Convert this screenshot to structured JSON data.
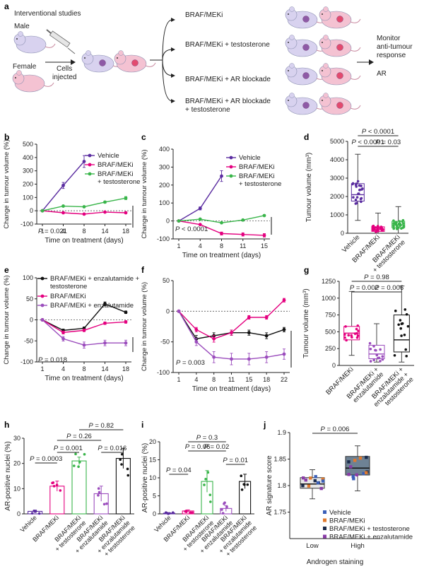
{
  "chart_data": [
    {
      "panel": "a",
      "type": "diagram",
      "title": "Interventional studies",
      "inputs": [
        "Male",
        "Female"
      ],
      "injection_label": "Cells injected",
      "arms": [
        "BRAF/MEKi",
        "BRAF/MEKi + testosterone",
        "BRAF/MEKi + AR blockade",
        "BRAF/MEKi + AR blockade + testosterone"
      ],
      "outputs": [
        "Monitor anti-tumour response",
        "AR"
      ]
    },
    {
      "panel": "b",
      "type": "line",
      "xlabel": "Time on treatment (days)",
      "ylabel": "Change in tumour volume (%)",
      "x": [
        1,
        4,
        8,
        14,
        18
      ],
      "ylim": [
        -100,
        500
      ],
      "yticks": [
        -100,
        0,
        100,
        200,
        300,
        400,
        500
      ],
      "series": [
        {
          "name": "Vehicle",
          "x": [
            1,
            4,
            8
          ],
          "values": [
            0,
            190,
            370
          ],
          "color": "#5a2ca0"
        },
        {
          "name": "BRAF/MEKi",
          "x": [
            1,
            4,
            8,
            14,
            18
          ],
          "values": [
            0,
            -15,
            -25,
            -10,
            -15
          ],
          "color": "#e4007f"
        },
        {
          "name": "BRAF/MEKi + testosterone",
          "x": [
            1,
            4,
            8,
            14,
            18
          ],
          "values": [
            0,
            35,
            30,
            65,
            95
          ],
          "color": "#39b54a"
        }
      ],
      "annotation": "P = 0.021"
    },
    {
      "panel": "c",
      "type": "line",
      "xlabel": "Time on treatment (days)",
      "ylabel": "Change in tumour volume (%)",
      "x": [
        1,
        4,
        8,
        11,
        15
      ],
      "ylim": [
        -100,
        400
      ],
      "yticks": [
        -100,
        0,
        100,
        200,
        300,
        400
      ],
      "series": [
        {
          "name": "Vehicle",
          "x": [
            1,
            4,
            8
          ],
          "values": [
            0,
            70,
            250
          ],
          "color": "#5a2ca0"
        },
        {
          "name": "BRAF/MEKi",
          "x": [
            1,
            4,
            8,
            11,
            15
          ],
          "values": [
            0,
            -20,
            -70,
            -75,
            -80
          ],
          "color": "#e4007f"
        },
        {
          "name": "BRAF/MEKi + testosterone",
          "x": [
            1,
            4,
            8,
            11,
            15
          ],
          "values": [
            0,
            10,
            -10,
            5,
            30
          ],
          "color": "#39b54a"
        }
      ],
      "annotation": "P < 0.0001"
    },
    {
      "panel": "d",
      "type": "box",
      "ylabel": "Tumour volume (mm³)",
      "ylabel_text": "Tumour volume (mm",
      "ylabel_sup": "3",
      "ylim": [
        0,
        5000
      ],
      "yticks": [
        0,
        1000,
        2000,
        3000,
        4000,
        5000
      ],
      "categories": [
        "Vehicle",
        "BRAF/MEKi",
        "BRAF/MEKi + testosterone"
      ],
      "category_lines": [
        [
          "Vehicle"
        ],
        [
          "BRAF/MEKi"
        ],
        [
          "BRAF/MEKi",
          "+ testosterone"
        ]
      ],
      "boxes": [
        {
          "min": 700,
          "q1": 1750,
          "median": 2100,
          "q3": 2700,
          "max": 4300,
          "color": "#5a2ca0"
        },
        {
          "min": 0,
          "q1": 100,
          "median": 200,
          "q3": 350,
          "max": 1100,
          "color": "#e4007f"
        },
        {
          "min": 0,
          "q1": 300,
          "median": 450,
          "q3": 650,
          "max": 1450,
          "color": "#39b54a"
        }
      ],
      "comparisons": [
        {
          "label": "P < 0.0001",
          "from": 0,
          "to": 2
        },
        {
          "label": "P < 0.0001",
          "from": 0,
          "to": 1
        },
        {
          "label": "P = 0.03",
          "from": 1,
          "to": 2
        }
      ]
    },
    {
      "panel": "e",
      "type": "line",
      "xlabel": "Time on treatment (days)",
      "ylabel": "Change in tumour volume (%)",
      "x": [
        1,
        4,
        8,
        14,
        18
      ],
      "ylim": [
        -100,
        100
      ],
      "yticks": [
        -100,
        -50,
        0,
        50,
        100
      ],
      "series": [
        {
          "name": "BRAF/MEKi + enzalutamide + testosterone",
          "legend_lines": [
            "BRAF/MEKi + enzalutamide +",
            "testosterone"
          ],
          "x": [
            1,
            4,
            8,
            14,
            18
          ],
          "values": [
            0,
            -25,
            -20,
            38,
            18
          ],
          "color": "#111111"
        },
        {
          "name": "BRAF/MEKi",
          "legend_lines": [
            "BRAF/MEKi"
          ],
          "x": [
            1,
            4,
            8,
            14,
            18
          ],
          "values": [
            0,
            -30,
            -25,
            -8,
            -5
          ],
          "color": "#e4007f"
        },
        {
          "name": "BRAF/MEKi + enzalutamide",
          "legend_lines": [
            "BRAF/MEKi + enzalutamide"
          ],
          "x": [
            1,
            4,
            8,
            14,
            18
          ],
          "values": [
            0,
            -45,
            -60,
            -55,
            -55
          ],
          "color": "#9b4dbd"
        }
      ],
      "annotation": "P = 0.018"
    },
    {
      "panel": "f",
      "type": "line",
      "xlabel": "Time on treatment (days)",
      "ylabel": "Change in tumour volume (%)",
      "x": [
        1,
        4,
        8,
        11,
        15,
        18,
        22
      ],
      "ylim": [
        -100,
        50
      ],
      "yticks": [
        -100,
        -50,
        0,
        50
      ],
      "series": [
        {
          "name": "BRAF/MEKi + enzalutamide + testosterone",
          "x": [
            1,
            4,
            8,
            11,
            15,
            18,
            22
          ],
          "values": [
            0,
            -45,
            -40,
            -35,
            -35,
            -40,
            -30
          ],
          "color": "#111111"
        },
        {
          "name": "BRAF/MEKi",
          "x": [
            1,
            4,
            8,
            11,
            15,
            18,
            22
          ],
          "values": [
            0,
            -30,
            -45,
            -35,
            -10,
            -10,
            18
          ],
          "color": "#e4007f"
        },
        {
          "name": "BRAF/MEKi + enzalutamide",
          "x": [
            1,
            4,
            8,
            11,
            15,
            18,
            22
          ],
          "values": [
            0,
            -50,
            -75,
            -78,
            -78,
            -75,
            -70
          ],
          "color": "#9b4dbd"
        }
      ],
      "annotation": "P = 0.003"
    },
    {
      "panel": "g",
      "type": "box",
      "ylabel": "Tumour volume (mm³)",
      "ylabel_text": "Tumour volume (mm",
      "ylabel_sup": "3",
      "ylim": [
        0,
        1250
      ],
      "yticks": [
        0,
        250,
        500,
        750,
        1000,
        1250
      ],
      "categories": [
        "BRAF/MEKi",
        "BRAF/MEKi + enzalutamide",
        "BRAF/MEKi + enzalutamide + testosterone"
      ],
      "category_lines": [
        [
          "BRAF/MEKi"
        ],
        [
          "BRAF/MEKi +",
          "enzalutamide"
        ],
        [
          "BRAF/MEKi +",
          "enzalutamide +",
          "testosterone"
        ]
      ],
      "boxes": [
        {
          "min": 150,
          "q1": 380,
          "median": 480,
          "q3": 580,
          "max": 1100,
          "color": "#e4007f"
        },
        {
          "min": 50,
          "q1": 100,
          "median": 170,
          "q3": 300,
          "max": 620,
          "color": "#9b4dbd"
        },
        {
          "min": 50,
          "q1": 200,
          "median": 380,
          "q3": 750,
          "max": 1180,
          "color": "#111111"
        }
      ],
      "comparisons": [
        {
          "label": "P = 0.98",
          "from": 0,
          "to": 2
        },
        {
          "label": "P = 0.002",
          "from": 0,
          "to": 1
        },
        {
          "label": "P = 0.006",
          "from": 1,
          "to": 2
        }
      ]
    },
    {
      "panel": "h",
      "type": "bar",
      "ylabel": "AR-positive nuclei (%)",
      "ylim": [
        0,
        30
      ],
      "yticks": [
        0,
        10,
        20,
        30
      ],
      "categories": [
        "Vehicle",
        "BRAF/MEKi",
        "BRAF/MEKi + testosterone",
        "BRAF/MEKi + enzalutamide",
        "BRAF/MEKi + enzalutamide + testosterone"
      ],
      "category_lines": [
        [
          "Vehicle"
        ],
        [
          "BRAF/MEKi"
        ],
        [
          "BRAF/MEKi",
          "+ testosterone"
        ],
        [
          "BRAF/MEKi",
          "+ enzalutamide"
        ],
        [
          "BRAF/MEKi",
          "+ enzalutamide",
          "+ testosterone"
        ]
      ],
      "values": [
        1,
        11,
        21,
        8,
        22
      ],
      "errors": [
        0.5,
        2,
        1.5,
        3,
        4
      ],
      "colors": [
        "#5a2ca0",
        "#e4007f",
        "#39b54a",
        "#9b4dbd",
        "#111111"
      ],
      "comparisons": [
        {
          "label": "P = 0.82",
          "from": 2,
          "to": 4
        },
        {
          "label": "P = 0.26",
          "from": 1,
          "to": 3
        },
        {
          "label": "P = 0.001",
          "from": 1,
          "to": 2
        },
        {
          "label": "P = 0.016",
          "from": 3,
          "to": 4
        },
        {
          "label": "P = 0.0003",
          "from": 0,
          "to": 1
        }
      ]
    },
    {
      "panel": "i",
      "type": "bar",
      "ylabel": "AR-positive nuclei (%)",
      "ylim": [
        0,
        20
      ],
      "yticks": [
        0,
        5,
        10,
        15,
        20
      ],
      "categories": [
        "Vehicle",
        "BRAF/MEKi",
        "BRAF/MEKi + testosterone",
        "BRAF/MEKi + enzalutamide",
        "BRAF/MEKi + enzalutamide + testosterone"
      ],
      "category_lines": [
        [
          "Vehicle"
        ],
        [
          "BRAF/MEKi"
        ],
        [
          "BRAF/MEKi",
          "+ testosterone"
        ],
        [
          "BRAF/MEKi",
          "+ enzalutamide"
        ],
        [
          "BRAF/MEKi",
          "+ enzalutamide",
          "+ testosterone"
        ]
      ],
      "values": [
        0.2,
        0.8,
        9,
        1.5,
        9
      ],
      "errors": [
        0.1,
        0.3,
        3,
        0.8,
        2
      ],
      "colors": [
        "#5a2ca0",
        "#e4007f",
        "#39b54a",
        "#9b4dbd",
        "#111111"
      ],
      "comparisons": [
        {
          "label": "P = 0.3",
          "from": 1,
          "to": 3
        },
        {
          "label": "P = 0.06",
          "from": 1,
          "to": 2
        },
        {
          "label": "P = 0.02",
          "from": 2,
          "to": 3
        },
        {
          "label": "P = 0.01",
          "from": 3,
          "to": 4
        },
        {
          "label": "P = 0.04",
          "from": 0,
          "to": 1
        }
      ]
    },
    {
      "panel": "j",
      "type": "box",
      "xlabel": "Androgen staining",
      "ylabel": "AR signature score",
      "ylim": [
        1.7,
        1.9
      ],
      "yticks": [
        1.75,
        1.8,
        1.85,
        1.9
      ],
      "categories": [
        "Low",
        "High"
      ],
      "boxes": [
        {
          "min": 1.775,
          "q1": 1.795,
          "median": 1.803,
          "q3": 1.815,
          "max": 1.83,
          "color": "#e8e8e8"
        },
        {
          "min": 1.79,
          "q1": 1.82,
          "median": 1.833,
          "q3": 1.855,
          "max": 1.875,
          "color": "#6e8294"
        }
      ],
      "comparisons": [
        {
          "label": "P = 0.006",
          "from": 0,
          "to": 1
        }
      ],
      "legend": [
        {
          "name": "Vehicle",
          "color": "#3a5fb8"
        },
        {
          "name": "BRAF/MEKi",
          "color": "#e07a2e"
        },
        {
          "name": "BRAF/MEKi + testosterone",
          "color": "#1a2a4a"
        },
        {
          "name": "BRAF/MEKi + enzalutamide",
          "color": "#8a3ca8"
        }
      ]
    }
  ]
}
